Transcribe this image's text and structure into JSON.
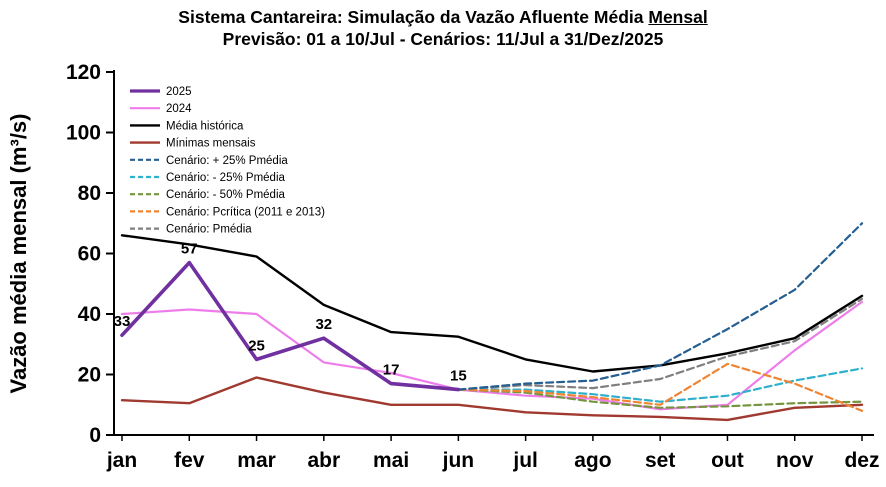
{
  "chart_data": {
    "type": "line",
    "title": "Sistema Cantareira: Simulação da Vazão Afluente Média Mensal",
    "title_part_main": "Sistema Cantareira: Simulação da Vazão Afluente Média ",
    "title_part_underlined": "Mensal",
    "subtitle": "Previsão: 01 a 10/Jul - Cenários: 11/Jul a 31/Dez/2025",
    "ylabel": "Vazão média mensal (m³/s)",
    "xlabel": "",
    "ylim": [
      0,
      120
    ],
    "yticks": [
      0,
      20,
      40,
      60,
      80,
      100,
      120
    ],
    "categories": [
      "jan",
      "fev",
      "mar",
      "abr",
      "mai",
      "jun",
      "jul",
      "ago",
      "set",
      "out",
      "nov",
      "dez"
    ],
    "grid": false,
    "legend_position": "inside-top-left",
    "draw_order": [
      3,
      2,
      1,
      8,
      6,
      5,
      7,
      4,
      0
    ],
    "series": [
      {
        "id": "2025",
        "name": "2025",
        "color": "#7030A0",
        "width": 3.6,
        "dash": null,
        "show_point_labels": true,
        "values": [
          33,
          57,
          25,
          32,
          17,
          15,
          null,
          null,
          null,
          null,
          null,
          null
        ]
      },
      {
        "id": "2024",
        "name": "2024",
        "color": "#EE7DEB",
        "width": 2.2,
        "dash": null,
        "show_point_labels": false,
        "values": [
          40,
          41.5,
          40,
          24,
          20.5,
          15,
          13,
          12,
          8.5,
          10,
          28,
          44
        ]
      },
      {
        "id": "media-historica",
        "name": "Média histórica",
        "color": "#000000",
        "width": 2.4,
        "dash": null,
        "show_point_labels": false,
        "values": [
          66,
          63,
          59,
          43,
          34,
          32.5,
          25,
          21,
          23,
          27,
          32,
          46
        ]
      },
      {
        "id": "minimas-mensais",
        "name": "Mínimas mensais",
        "color": "#A0392F",
        "width": 2.4,
        "dash": null,
        "show_point_labels": false,
        "values": [
          11.5,
          10.5,
          19,
          14,
          10,
          10,
          7.5,
          6.5,
          6,
          5,
          9,
          10
        ]
      },
      {
        "id": "cenario-mais-25",
        "name": "Cenário: + 25% Pmédia",
        "color": "#255E91",
        "width": 2.2,
        "dash": "7,4",
        "show_point_labels": false,
        "values": [
          null,
          null,
          null,
          null,
          null,
          15,
          17,
          18,
          23,
          35,
          48,
          70
        ]
      },
      {
        "id": "cenario-menos-25",
        "name": "Cenário: - 25% Pmédia",
        "color": "#2FB0CC",
        "width": 2.2,
        "dash": "7,4",
        "show_point_labels": false,
        "values": [
          null,
          null,
          null,
          null,
          null,
          15,
          15,
          13.5,
          11,
          13,
          18,
          22
        ]
      },
      {
        "id": "cenario-menos-50",
        "name": "Cenário: - 50% Pmédia",
        "color": "#76953F",
        "width": 2.2,
        "dash": "7,4",
        "show_point_labels": false,
        "values": [
          null,
          null,
          null,
          null,
          null,
          15,
          14,
          11,
          9,
          9.5,
          10.5,
          11
        ]
      },
      {
        "id": "cenario-pcritica",
        "name": "Cenário: Pcrítica (2011 e 2013)",
        "color": "#EF8532",
        "width": 2.2,
        "dash": "7,4",
        "show_point_labels": false,
        "values": [
          null,
          null,
          null,
          null,
          null,
          15,
          14.5,
          12.5,
          10,
          23.5,
          17,
          8
        ]
      },
      {
        "id": "cenario-pmedia",
        "name": "Cenário: Pmédia",
        "color": "#7F7F7F",
        "width": 2.2,
        "dash": "7,4",
        "show_point_labels": false,
        "values": [
          null,
          null,
          null,
          null,
          null,
          15,
          16.5,
          15.5,
          18.5,
          26,
          31,
          45
        ]
      }
    ]
  }
}
